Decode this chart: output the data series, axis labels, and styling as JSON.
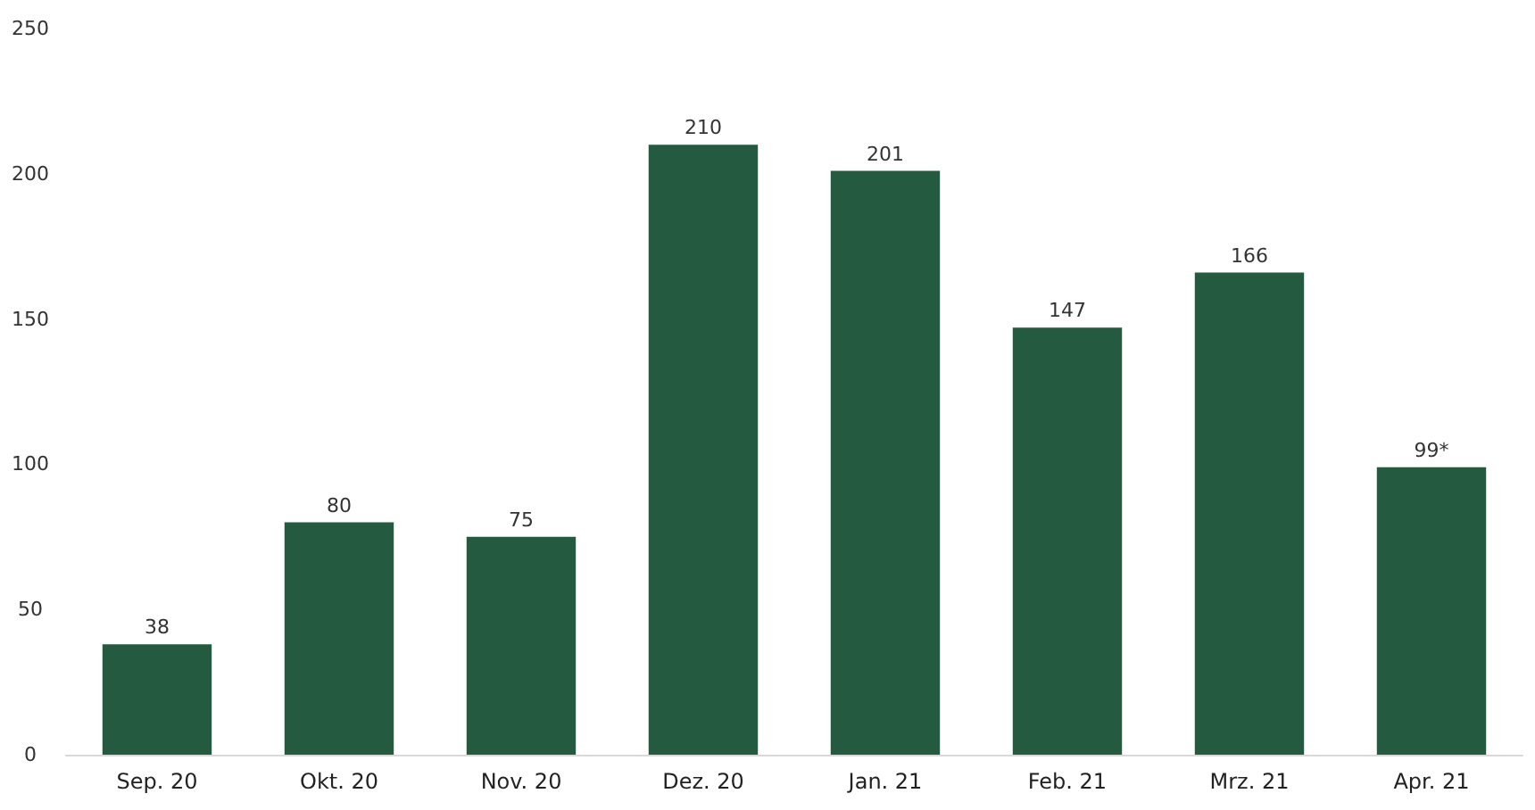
{
  "chart_data": {
    "type": "bar",
    "categories": [
      "Sep. 20",
      "Okt. 20",
      "Nov. 20",
      "Dez. 20",
      "Jan. 21",
      "Feb. 21",
      "Mrz. 21",
      "Apr. 21"
    ],
    "values": [
      38,
      80,
      75,
      210,
      201,
      147,
      166,
      99
    ],
    "value_labels": [
      "38",
      "80",
      "75",
      "210",
      "201",
      "147",
      "166",
      "99*"
    ],
    "color": "#245b40",
    "ylim": [
      0,
      250
    ],
    "yticks": [
      0,
      50,
      100,
      150,
      200,
      250
    ]
  }
}
